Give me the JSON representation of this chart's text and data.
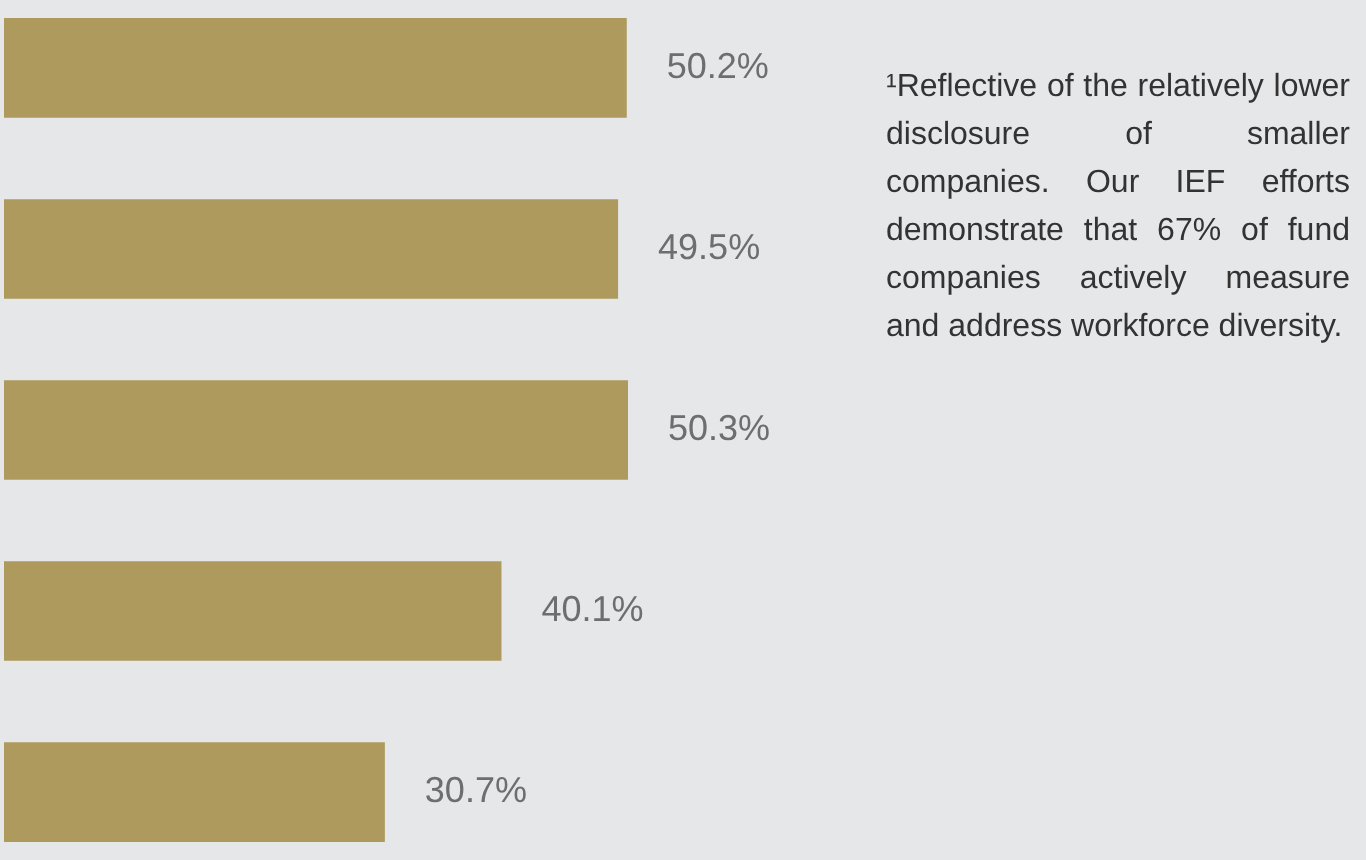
{
  "chart_data": {
    "type": "bar",
    "orientation": "horizontal",
    "categories": [
      null,
      null,
      null,
      null,
      null
    ],
    "values": [
      50.2,
      49.5,
      50.3,
      40.1,
      30.7
    ],
    "value_labels": [
      "50.2%",
      "49.5%",
      "50.3%",
      "40.1%",
      "30.7%"
    ],
    "color": "#ad9a5c",
    "annotations": [
      "¹Reflective of the relatively lower disclosure of smaller companies. Our IEF efforts demonstrate that 67% of fund companies actively measure and address workforce diversity."
    ]
  }
}
